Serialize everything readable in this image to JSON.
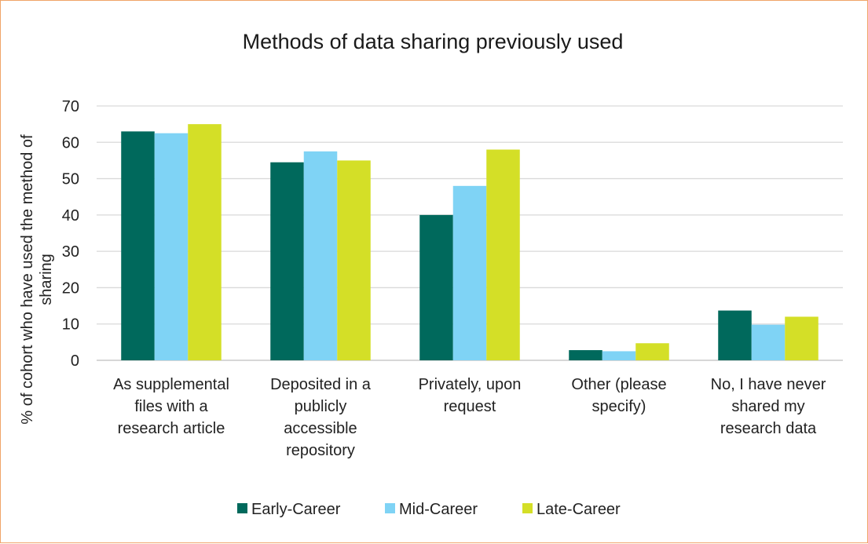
{
  "chart_data": {
    "type": "bar",
    "title": "Methods of data sharing previously used",
    "ylabel_lines": [
      "% of cohort who have used the method of",
      "sharing"
    ],
    "xlabel": "",
    "ylim": [
      0,
      70
    ],
    "yticks": [
      0,
      10,
      20,
      30,
      40,
      50,
      60,
      70
    ],
    "grid": true,
    "legend_position": "bottom",
    "categories": [
      [
        "As supplemental",
        "files with a",
        "research article"
      ],
      [
        "Deposited in a",
        "publicly",
        "accessible",
        "repository"
      ],
      [
        "Privately, upon",
        "request"
      ],
      [
        "Other (please",
        "specify)"
      ],
      [
        "No, I have never",
        "shared my",
        "research data"
      ]
    ],
    "series": [
      {
        "name": "Early-Career",
        "color": "#00695c",
        "values": [
          63,
          54.5,
          40,
          2.8,
          13.7
        ]
      },
      {
        "name": "Mid-Career",
        "color": "#7fd3f5",
        "values": [
          62.5,
          57.5,
          48,
          2.5,
          9.8
        ]
      },
      {
        "name": "Late-Career",
        "color": "#d4df27",
        "values": [
          65,
          55,
          58,
          4.7,
          12
        ]
      }
    ]
  },
  "colors": {
    "gridline": "#d9d9d9",
    "axis": "#bfbfbf",
    "frame_border": "#f0a468"
  }
}
